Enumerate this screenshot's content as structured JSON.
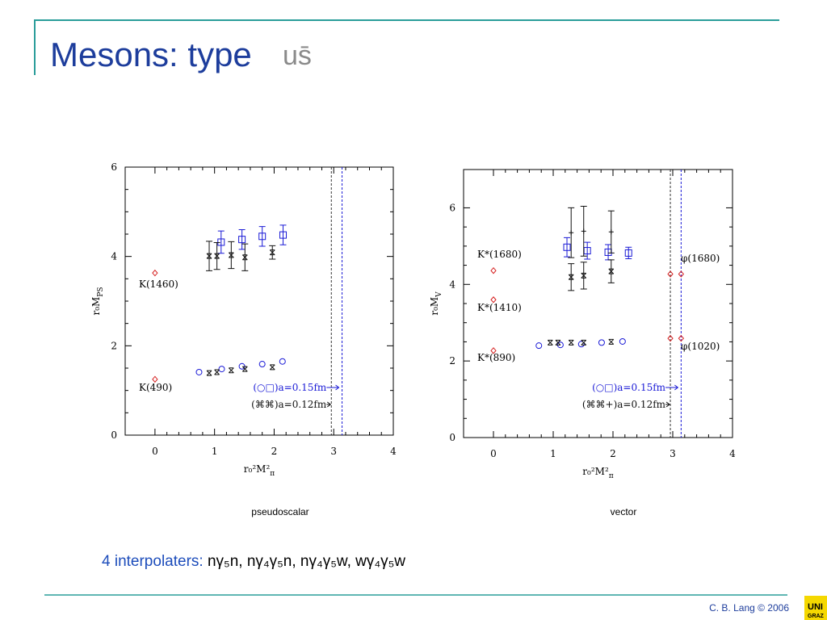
{
  "title": "Mesons: type",
  "title_flavor": "us̄",
  "chart_data": [
    {
      "type": "scatter",
      "caption": "pseudoscalar",
      "x_label": "r₀²M²",
      "x_label_sub": "π",
      "y_label": "r₀M",
      "y_label_sub": "PS",
      "xlim": [
        -0.5,
        4
      ],
      "ylim": [
        0,
        6
      ],
      "xticks": [
        0,
        1,
        2,
        3,
        4
      ],
      "yticks": [
        0,
        2,
        4,
        6
      ],
      "series": [
        {
          "marker": "diamond",
          "color": "#d62020",
          "x": [
            0,
            0
          ],
          "values": [
            3.63,
            1.25
          ]
        },
        {
          "marker": "square",
          "color": "#1a1ad6",
          "x": [
            1.11,
            1.46,
            1.8,
            2.15
          ],
          "values": [
            4.32,
            4.38,
            4.45,
            4.48
          ],
          "errors": [
            0.25,
            0.22,
            0.22,
            0.22
          ]
        },
        {
          "marker": "circle",
          "color": "#1a1ad6",
          "x": [
            0.74,
            1.12,
            1.46,
            1.8,
            2.14
          ],
          "values": [
            1.41,
            1.48,
            1.54,
            1.59,
            1.65
          ]
        },
        {
          "marker": "star",
          "color": "#111111",
          "x": [
            0.91,
            1.04,
            1.28,
            1.51,
            1.97
          ],
          "values": [
            4.01,
            4.01,
            4.03,
            3.98,
            4.09
          ],
          "errors": [
            0.33,
            0.3,
            0.3,
            0.3,
            0.15
          ]
        },
        {
          "marker": "star",
          "color": "#111111",
          "x": [
            0.91,
            1.04,
            1.28,
            1.51,
            1.97
          ],
          "values": [
            1.39,
            1.41,
            1.45,
            1.48,
            1.52
          ]
        }
      ],
      "vlines": [
        {
          "x": 2.96,
          "color": "#333333"
        },
        {
          "x": 3.14,
          "color": "#1a1ad6"
        }
      ],
      "annotations": [
        "K(1460)",
        "K(490)"
      ],
      "legend": [
        {
          "text": "(○□)a=0.15fm",
          "color": "#1a1ad6"
        },
        {
          "text": "(⌘⌘)a=0.12fm",
          "color": "#111111"
        }
      ]
    },
    {
      "type": "scatter",
      "caption": "vector",
      "x_label": "r₀²M²",
      "x_label_sub": "π",
      "y_label": "r₀M",
      "y_label_sub": "V",
      "xlim": [
        -0.5,
        4
      ],
      "ylim": [
        0,
        7
      ],
      "xticks": [
        0,
        1,
        2,
        3,
        4
      ],
      "yticks": [
        0,
        2,
        4,
        6
      ],
      "series": [
        {
          "marker": "diamond",
          "color": "#d62020",
          "x": [
            0,
            0,
            0,
            2.96,
            3.14,
            2.96,
            3.14
          ],
          "values": [
            4.36,
            3.6,
            2.27,
            4.27,
            4.27,
            2.59,
            2.59
          ]
        },
        {
          "marker": "square",
          "color": "#1a1ad6",
          "x": [
            1.23,
            1.57,
            1.92,
            2.26
          ],
          "values": [
            4.97,
            4.88,
            4.84,
            4.82
          ],
          "errors": [
            0.25,
            0.22,
            0.2,
            0.15
          ]
        },
        {
          "marker": "circle",
          "color": "#1a1ad6",
          "x": [
            0.76,
            1.12,
            1.47,
            1.81,
            2.16
          ],
          "values": [
            2.4,
            2.42,
            2.44,
            2.48,
            2.51
          ]
        },
        {
          "marker": "star",
          "color": "#111111",
          "x": [
            1.3,
            1.51,
            1.97
          ],
          "values": [
            4.19,
            4.23,
            4.34
          ],
          "errors": [
            0.35,
            0.35,
            0.3
          ]
        },
        {
          "marker": "plus",
          "color": "#111111",
          "x": [
            1.3,
            1.51,
            1.97
          ],
          "values": [
            5.35,
            5.39,
            5.37
          ],
          "errors": [
            0.65,
            0.65,
            0.55
          ]
        },
        {
          "marker": "star",
          "color": "#111111",
          "x": [
            0.95,
            1.08,
            1.3,
            1.51,
            1.97
          ],
          "values": [
            2.48,
            2.48,
            2.48,
            2.48,
            2.5
          ]
        }
      ],
      "vlines": [
        {
          "x": 2.96,
          "color": "#333333"
        },
        {
          "x": 3.14,
          "color": "#1a1ad6"
        }
      ],
      "annotations": [
        "K*(1680)",
        "K*(1410)",
        "K*(890)",
        "φ(1680)",
        "φ(1020)"
      ],
      "legend": [
        {
          "text": "(○□)a=0.15fm",
          "color": "#1a1ad6"
        },
        {
          "text": "(⌘⌘+)a=0.12fm",
          "color": "#111111"
        }
      ]
    }
  ],
  "interpolators_label": "4 interpolaters:",
  "interpolators": "nγ₅n, nγ₄γ₅n, nγ₄γ₅w, wγ₄γ₅w",
  "footer": "C. B. Lang © 2006",
  "logo": [
    "UNI",
    "GRAZ"
  ]
}
